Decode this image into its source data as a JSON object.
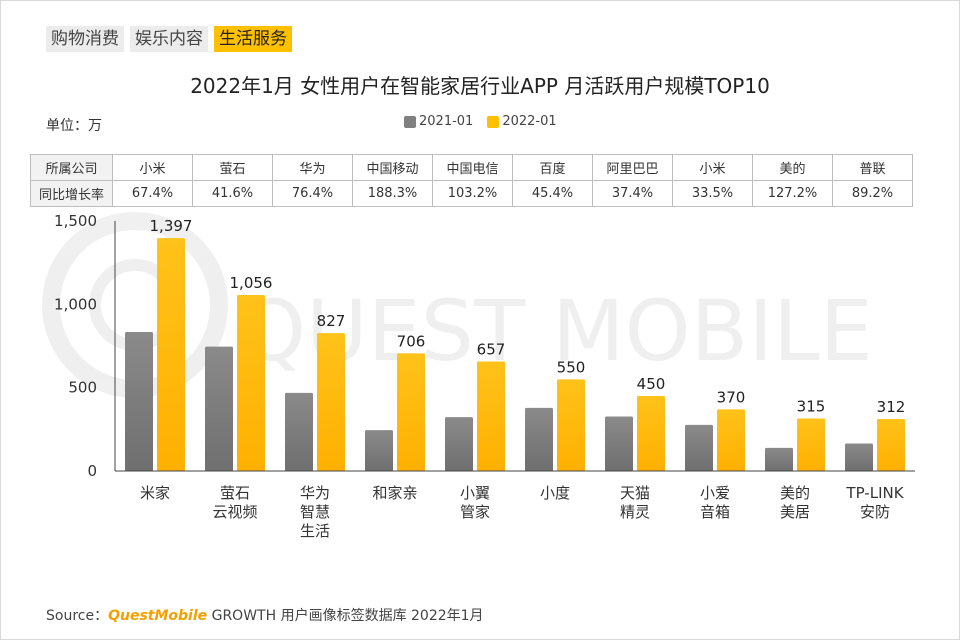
{
  "tabs": [
    {
      "label": "购物消费",
      "active": false
    },
    {
      "label": "娱乐内容",
      "active": false
    },
    {
      "label": "生活服务",
      "active": true
    }
  ],
  "title": "2022年1月 女性用户在智能家居行业APP 月活跃用户规模TOP10",
  "unit_label": "单位：万",
  "watermark": "QUEST MOBILE",
  "growth_table": {
    "header_label": "所属公司",
    "growth_label": "同比增长率",
    "companies": [
      "小米",
      "萤石",
      "华为",
      "中国移动",
      "中国电信",
      "百度",
      "阿里巴巴",
      "小米",
      "美的",
      "普联"
    ],
    "growth": [
      "67.4%",
      "41.6%",
      "76.4%",
      "188.3%",
      "103.2%",
      "45.4%",
      "37.4%",
      "33.5%",
      "127.2%",
      "89.2%"
    ]
  },
  "source": {
    "prefix": "Source：",
    "brand": "QuestMobile",
    "suffix": " GROWTH 用户画像标签数据库 2022年1月"
  },
  "colors": {
    "series_2021": "#7f7f7f",
    "series_2022": "#ffc000",
    "active_tab": "#ffc000"
  },
  "chart_data": {
    "type": "bar",
    "categories": [
      [
        "米家"
      ],
      [
        "萤石",
        "云视频"
      ],
      [
        "华为",
        "智慧",
        "生活"
      ],
      [
        "和家亲"
      ],
      [
        "小翼",
        "管家"
      ],
      [
        "小度"
      ],
      [
        "天猫",
        "精灵"
      ],
      [
        "小爱",
        "音箱"
      ],
      [
        "美的",
        "美居"
      ],
      [
        "TP-LINK",
        "安防"
      ]
    ],
    "series": [
      {
        "name": "2021-01",
        "values": [
          834,
          746,
          469,
          245,
          323,
          379,
          327,
          277,
          139,
          165
        ],
        "labels": false
      },
      {
        "name": "2022-01",
        "values": [
          1397,
          1056,
          827,
          706,
          657,
          550,
          450,
          370,
          315,
          312
        ],
        "labels": [
          "1,397",
          "1,056",
          "827",
          "706",
          "657",
          "550",
          "450",
          "370",
          "315",
          "312"
        ]
      }
    ],
    "ylim": [
      0,
      1500
    ],
    "yticks": [
      0,
      500,
      1000,
      1500
    ],
    "ytick_labels": [
      "0",
      "500",
      "1,000",
      "1,500"
    ],
    "legend_position": "top-center",
    "grid": false
  }
}
